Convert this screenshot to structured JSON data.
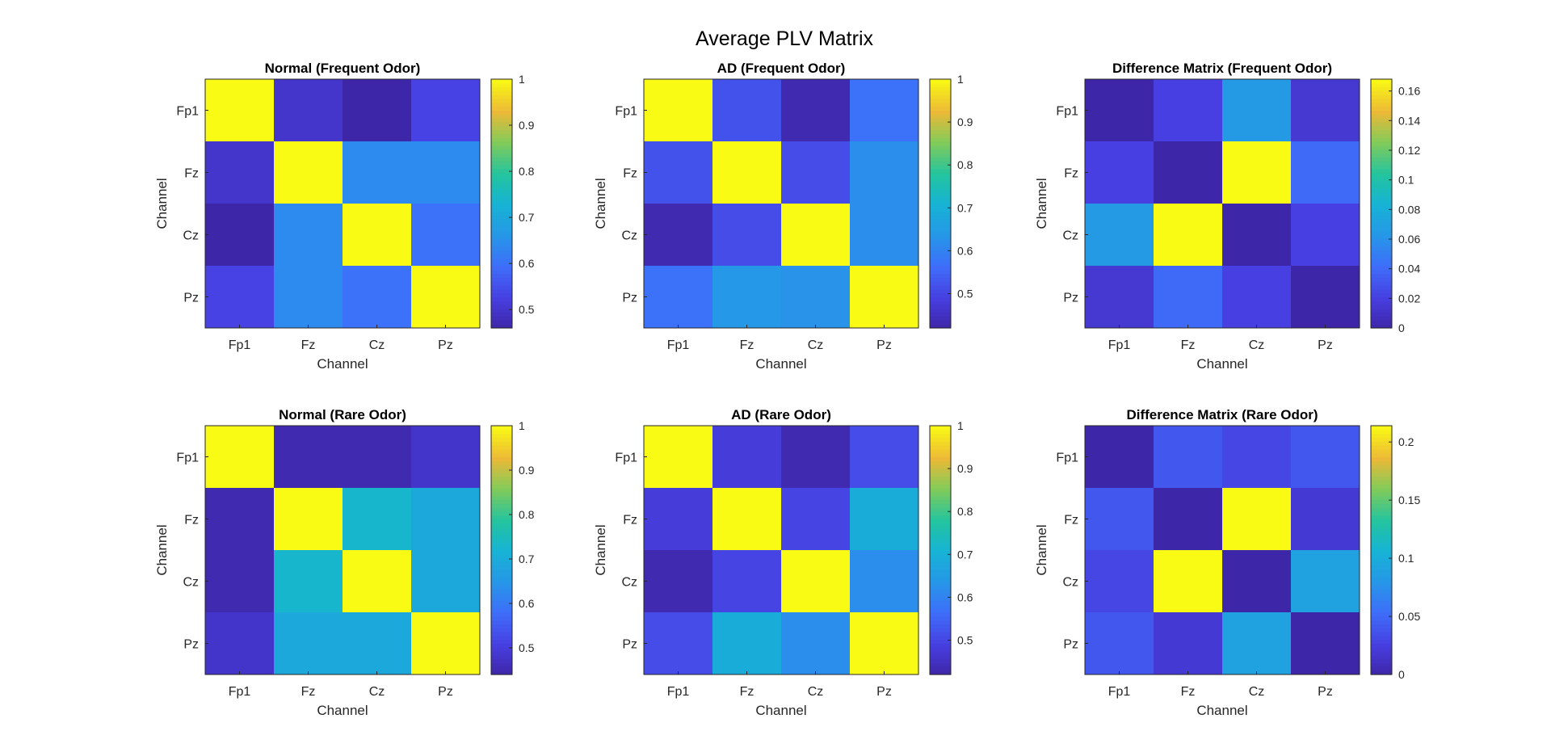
{
  "figure": {
    "title": "Average PLV Matrix"
  },
  "chart_data": [
    {
      "type": "heatmap",
      "title": "Normal (Frequent Odor)",
      "xlabel": "Channel",
      "ylabel": "Channel",
      "x": [
        "Fp1",
        "Fz",
        "Cz",
        "Pz"
      ],
      "y": [
        "Fp1",
        "Fz",
        "Cz",
        "Pz"
      ],
      "values": [
        [
          1.0,
          0.5,
          0.46,
          0.53
        ],
        [
          0.5,
          1.0,
          0.64,
          0.64
        ],
        [
          0.46,
          0.64,
          1.0,
          0.6
        ],
        [
          0.53,
          0.64,
          0.6,
          1.0
        ]
      ],
      "clim": [
        0.46,
        1.0
      ],
      "colorbar_ticks": [
        0.5,
        0.6,
        0.7,
        0.8,
        0.9,
        1
      ],
      "colorbar_tick_labels": [
        "0.5",
        "0.6",
        "0.7",
        "0.8",
        "0.9",
        "1"
      ],
      "colormap": "parula"
    },
    {
      "type": "heatmap",
      "title": "AD (Frequent Odor)",
      "xlabel": "Channel",
      "ylabel": "Channel",
      "x": [
        "Fp1",
        "Fz",
        "Cz",
        "Pz"
      ],
      "y": [
        "Fp1",
        "Fz",
        "Cz",
        "Pz"
      ],
      "values": [
        [
          1.0,
          0.52,
          0.43,
          0.57
        ],
        [
          0.52,
          1.0,
          0.51,
          0.62
        ],
        [
          0.43,
          0.51,
          1.0,
          0.62
        ],
        [
          0.57,
          0.64,
          0.63,
          1.0
        ]
      ],
      "clim": [
        0.42,
        1.0
      ],
      "colorbar_ticks": [
        0.5,
        0.6,
        0.7,
        0.8,
        0.9,
        1
      ],
      "colorbar_tick_labels": [
        "0.5",
        "0.6",
        "0.7",
        "0.8",
        "0.9",
        "1"
      ],
      "colormap": "parula"
    },
    {
      "type": "heatmap",
      "title": "Difference Matrix (Frequent Odor)",
      "xlabel": "Channel",
      "ylabel": "Channel",
      "x": [
        "Fp1",
        "Fz",
        "Cz",
        "Pz"
      ],
      "y": [
        "Fp1",
        "Fz",
        "Cz",
        "Pz"
      ],
      "values": [
        [
          0,
          0.02,
          0.065,
          0.015
        ],
        [
          0.02,
          0,
          0.168,
          0.04
        ],
        [
          0.065,
          0.168,
          0,
          0.02
        ],
        [
          0.015,
          0.04,
          0.02,
          0
        ]
      ],
      "clim": [
        0,
        0.168
      ],
      "colorbar_ticks": [
        0,
        0.02,
        0.04,
        0.06,
        0.08,
        0.1,
        0.12,
        0.14,
        0.16
      ],
      "colorbar_tick_labels": [
        "0",
        "0.02",
        "0.04",
        "0.06",
        "0.08",
        "0.1",
        "0.12",
        "0.14",
        "0.16"
      ],
      "colormap": "parula"
    },
    {
      "type": "heatmap",
      "title": "Normal (Rare Odor)",
      "xlabel": "Channel",
      "ylabel": "Channel",
      "x": [
        "Fp1",
        "Fz",
        "Cz",
        "Pz"
      ],
      "y": [
        "Fp1",
        "Fz",
        "Cz",
        "Pz"
      ],
      "values": [
        [
          1.0,
          0.45,
          0.45,
          0.48
        ],
        [
          0.45,
          1.0,
          0.73,
          0.69
        ],
        [
          0.45,
          0.73,
          1.0,
          0.69
        ],
        [
          0.48,
          0.69,
          0.69,
          1.0
        ]
      ],
      "clim": [
        0.44,
        1.0
      ],
      "colorbar_ticks": [
        0.5,
        0.6,
        0.7,
        0.8,
        0.9,
        1
      ],
      "colorbar_tick_labels": [
        "0.5",
        "0.6",
        "0.7",
        "0.8",
        "0.9",
        "1"
      ],
      "colormap": "parula"
    },
    {
      "type": "heatmap",
      "title": "AD (Rare Odor)",
      "xlabel": "Channel",
      "ylabel": "Channel",
      "x": [
        "Fp1",
        "Fz",
        "Cz",
        "Pz"
      ],
      "y": [
        "Fp1",
        "Fz",
        "Cz",
        "Pz"
      ],
      "values": [
        [
          1.0,
          0.48,
          0.43,
          0.51
        ],
        [
          0.48,
          1.0,
          0.5,
          0.69
        ],
        [
          0.43,
          0.5,
          1.0,
          0.62
        ],
        [
          0.51,
          0.69,
          0.62,
          1.0
        ]
      ],
      "clim": [
        0.42,
        1.0
      ],
      "colorbar_ticks": [
        0.5,
        0.6,
        0.7,
        0.8,
        0.9,
        1
      ],
      "colorbar_tick_labels": [
        "0.5",
        "0.6",
        "0.7",
        "0.8",
        "0.9",
        "1"
      ],
      "colormap": "parula"
    },
    {
      "type": "heatmap",
      "title": "Difference Matrix (Rare Odor)",
      "xlabel": "Channel",
      "ylabel": "Channel",
      "x": [
        "Fp1",
        "Fz",
        "Cz",
        "Pz"
      ],
      "y": [
        "Fp1",
        "Fz",
        "Cz",
        "Pz"
      ],
      "values": [
        [
          0,
          0.04,
          0.03,
          0.04
        ],
        [
          0.04,
          0,
          0.214,
          0.02
        ],
        [
          0.03,
          0.214,
          0,
          0.09
        ],
        [
          0.04,
          0.02,
          0.09,
          0
        ]
      ],
      "clim": [
        0,
        0.214
      ],
      "colorbar_ticks": [
        0,
        0.05,
        0.1,
        0.15,
        0.2
      ],
      "colorbar_tick_labels": [
        "0",
        "0.05",
        "0.1",
        "0.15",
        "0.2"
      ],
      "colormap": "parula"
    }
  ]
}
